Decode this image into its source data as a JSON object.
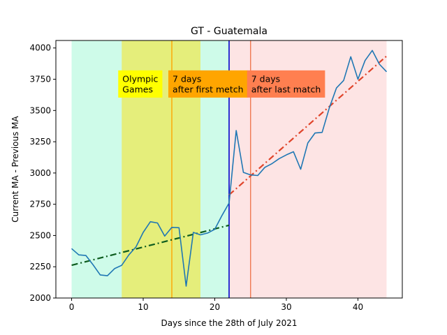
{
  "chart_data": {
    "type": "line",
    "title": "GT - Guatemala",
    "xlabel": "Days since the 28th of July 2021",
    "ylabel": "Current MA - Previous MA",
    "xlim": [
      -2.2,
      46.2
    ],
    "ylim": [
      2000,
      4060
    ],
    "xticks": [
      0,
      10,
      20,
      30,
      40
    ],
    "yticks": [
      2000,
      2250,
      2500,
      2750,
      3000,
      3250,
      3500,
      3750,
      4000
    ],
    "series": [
      {
        "name": "Current MA - Previous MA",
        "color": "#1f77b4",
        "x": [
          0,
          1,
          2,
          3,
          4,
          5,
          6,
          7,
          8,
          9,
          10,
          11,
          12,
          13,
          14,
          15,
          16,
          17,
          18,
          19,
          20,
          21,
          22,
          23,
          24,
          25,
          26,
          27,
          28,
          29,
          30,
          31,
          32,
          33,
          34,
          35,
          36,
          37,
          38,
          39,
          40,
          41,
          42,
          43,
          44
        ],
        "values": [
          2395,
          2345,
          2340,
          2265,
          2185,
          2178,
          2235,
          2262,
          2345,
          2410,
          2525,
          2610,
          2600,
          2495,
          2565,
          2562,
          2095,
          2525,
          2505,
          2520,
          2550,
          2660,
          2760,
          3340,
          3005,
          2985,
          2980,
          3045,
          3075,
          3115,
          3145,
          3170,
          3030,
          3240,
          3320,
          3325,
          3520,
          3680,
          3740,
          3930,
          3750,
          3900,
          3980,
          3870,
          3810
        ]
      }
    ],
    "trend_lines": [
      {
        "name": "trend-before",
        "color": "#0d5c1e",
        "x": [
          0,
          22
        ],
        "values": [
          2262,
          2582
        ]
      },
      {
        "name": "trend-after",
        "color": "#e0442a",
        "x": [
          22,
          44
        ],
        "values": [
          2825,
          3935
        ]
      }
    ],
    "shaded_regions": [
      {
        "name": "pre-period",
        "x": [
          0,
          22
        ],
        "color": "#cefbe9"
      },
      {
        "name": "olympic-games",
        "x": [
          7,
          18
        ],
        "color": "#e5ee7b"
      },
      {
        "name": "post-period",
        "x": [
          22,
          44
        ],
        "color": "#fde4e4"
      }
    ],
    "vertical_lines": [
      {
        "name": "first-match",
        "x": 14,
        "color": "#ffa500"
      },
      {
        "name": "event-boundary",
        "x": 22,
        "color": "#0000cc"
      },
      {
        "name": "last-match",
        "x": 25,
        "color": "#f07850"
      }
    ],
    "annotations": [
      {
        "name": "olympic-games",
        "lines": [
          "Olympic",
          "Games"
        ],
        "x": 7,
        "y": 3712,
        "bg": "#ffff00"
      },
      {
        "name": "first-match",
        "lines": [
          "7 days",
          "after first metch"
        ],
        "x": 14,
        "y": 3712,
        "bg": "#ffa500"
      },
      {
        "name": "last-match",
        "lines": [
          "7 days",
          "after last match"
        ],
        "x": 25,
        "y": 3712,
        "bg": "#ff7f50"
      }
    ]
  }
}
